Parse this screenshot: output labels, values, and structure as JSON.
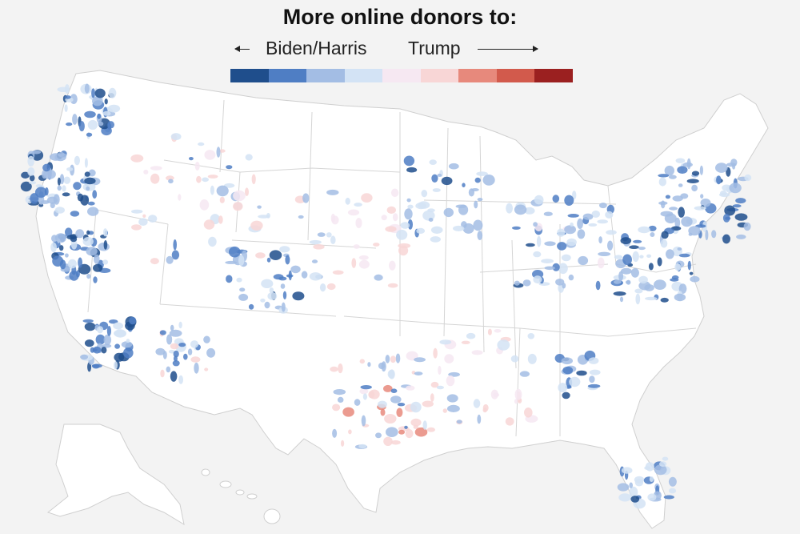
{
  "title": "More online donors to:",
  "legend": {
    "left_label": "Biden/Harris",
    "right_label": "Trump",
    "colors": [
      "#1f4e8c",
      "#4f7ec4",
      "#a3bde4",
      "#d3e3f5",
      "#f6e8f2",
      "#f8d6d6",
      "#e7897c",
      "#d25a4c",
      "#9b2020"
    ]
  },
  "map": {
    "type": "choropleth",
    "region": "United States (ZIP-code level)",
    "land_color": "#ffffff",
    "background_color": "#f3f3f3",
    "border_color": "#d8d8d8"
  }
}
